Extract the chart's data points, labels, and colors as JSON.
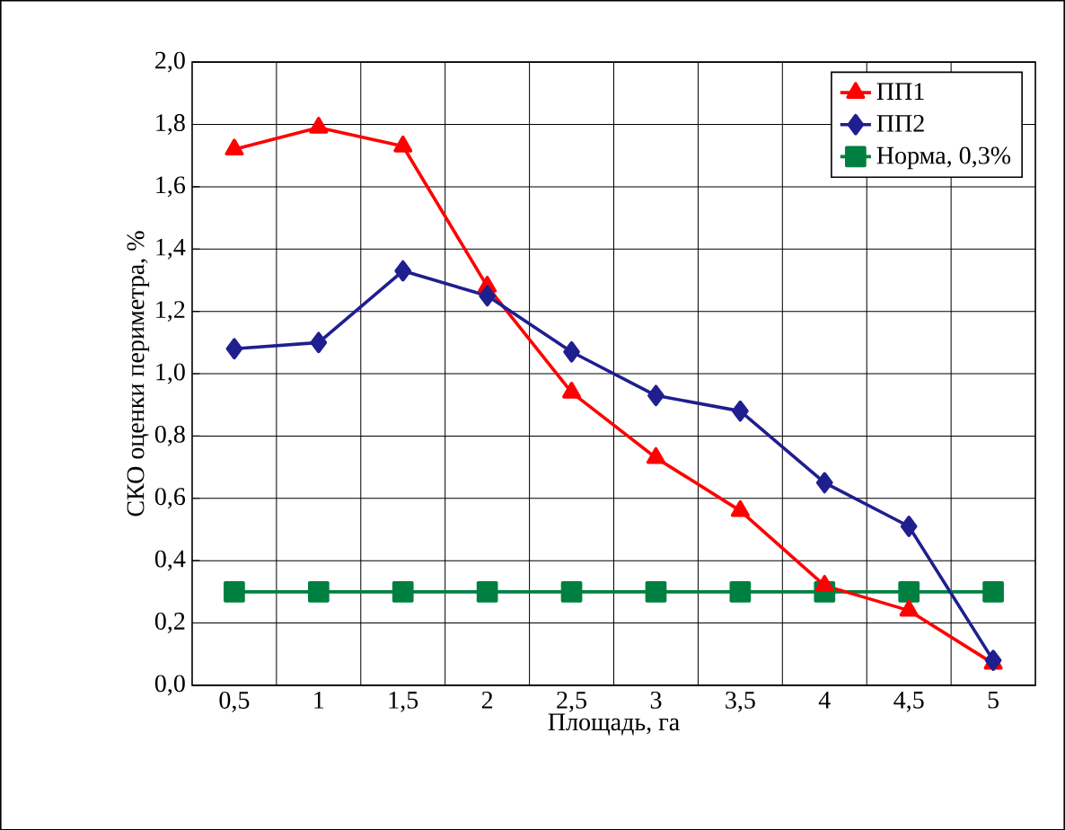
{
  "chart_data": {
    "type": "line",
    "xlabel": "Площадь, га",
    "ylabel": "СКО оценки периметра, %",
    "categories": [
      "0,5",
      "1",
      "1,5",
      "2",
      "2,5",
      "3",
      "3,5",
      "4",
      "4,5",
      "5"
    ],
    "series": [
      {
        "name": "ПП1",
        "color": "#ff0000",
        "marker": "triangle",
        "values": [
          1.72,
          1.79,
          1.73,
          1.28,
          0.94,
          0.73,
          0.56,
          0.32,
          0.24,
          0.07
        ]
      },
      {
        "name": "ПП2",
        "color": "#1f1f8f",
        "marker": "diamond",
        "values": [
          1.08,
          1.1,
          1.33,
          1.25,
          1.07,
          0.93,
          0.88,
          0.65,
          0.51,
          0.08
        ]
      },
      {
        "name": "Норма, 0,3%",
        "color": "#008040",
        "marker": "square",
        "values": [
          0.3,
          0.3,
          0.3,
          0.3,
          0.3,
          0.3,
          0.3,
          0.3,
          0.3,
          0.3
        ]
      }
    ],
    "ylim": [
      0,
      2
    ],
    "yticks": [
      {
        "value": 0,
        "label": "0,0"
      },
      {
        "value": 0.2,
        "label": "0,2"
      },
      {
        "value": 0.4,
        "label": "0,4"
      },
      {
        "value": 0.6,
        "label": "0,6"
      },
      {
        "value": 0.8,
        "label": "0,8"
      },
      {
        "value": 1.0,
        "label": "1,0"
      },
      {
        "value": 1.2,
        "label": "1,2"
      },
      {
        "value": 1.4,
        "label": "1,4"
      },
      {
        "value": 1.6,
        "label": "1,6"
      },
      {
        "value": 1.8,
        "label": "1,8"
      },
      {
        "value": 2.0,
        "label": "2,0"
      }
    ],
    "grid": true,
    "legend": "top right"
  }
}
